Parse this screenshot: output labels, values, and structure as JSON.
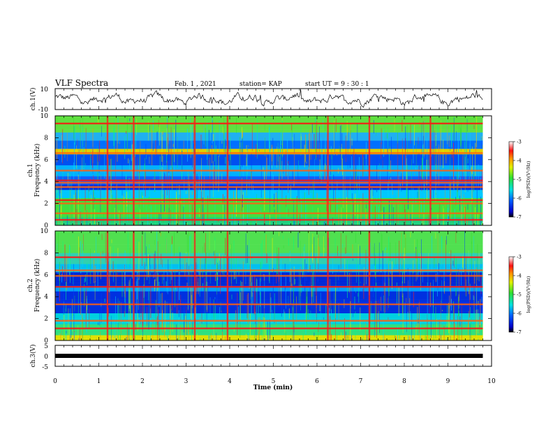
{
  "header": {
    "title": "VLF Spectra",
    "date": "Feb. 1  , 2021",
    "station": "station= KAP",
    "start": "start  UT  =   9  : 30 : 1"
  },
  "chart_data": [
    {
      "type": "line",
      "panel": "ch1-waveform",
      "ylabel": "ch.1(V)",
      "ylim": [
        -10,
        10
      ],
      "yticks": [
        "10",
        "-10"
      ],
      "x_end": 9.8,
      "note_values": "noisy voltage trace oscillating roughly between -6 and 6 V"
    },
    {
      "type": "heatmap",
      "panel": "ch1-spectrogram",
      "ylabel": "ch.1\nFrequency (kHz)",
      "ylim": [
        0,
        10
      ],
      "yticks": [
        "0",
        "2",
        "4",
        "6",
        "8",
        "10"
      ],
      "colorbar": {
        "label": "log(PSD)(V²/Hz)",
        "ticks": [
          "-3",
          "-4",
          "-5",
          "-6",
          "-7"
        ],
        "range": [
          -7,
          -3
        ]
      },
      "bright_lines_khz": [
        0.5,
        1.1,
        2.0,
        2.3,
        3.5,
        3.9,
        4.1,
        5.0,
        6.6,
        9.3
      ],
      "bright_columns_min": [
        1.2,
        1.8,
        3.2,
        3.95,
        6.25,
        7.2,
        8.6
      ]
    },
    {
      "type": "heatmap",
      "panel": "ch2-spectrogram",
      "ylabel": "ch.2\nFrequency (kHz)",
      "ylim": [
        0,
        10
      ],
      "yticks": [
        "0",
        "2",
        "4",
        "6",
        "8",
        "10"
      ],
      "colorbar": {
        "label": "log(PSD)(V²/Hz)",
        "ticks": [
          "-3",
          "-4",
          "-5",
          "-6",
          "-7"
        ],
        "range": [
          -7,
          -3
        ]
      },
      "bright_lines_khz": [
        1.1,
        1.8,
        3.3,
        4.9,
        5.9,
        6.4,
        7.6
      ],
      "bright_columns_min": [
        1.2,
        1.8,
        3.2,
        3.95,
        6.25,
        7.2
      ]
    },
    {
      "type": "line",
      "panel": "ch3-waveform",
      "ylabel": "ch.3(V)",
      "ylim": [
        -5,
        5
      ],
      "yticks": [
        "5",
        "0",
        "-5"
      ],
      "value": 0,
      "x_end": 9.8
    }
  ],
  "xaxis": {
    "label": "Time  (min)",
    "ticks": [
      "0",
      "1",
      "2",
      "3",
      "4",
      "5",
      "6",
      "7",
      "8",
      "9",
      "10"
    ],
    "range": [
      0,
      10
    ]
  }
}
